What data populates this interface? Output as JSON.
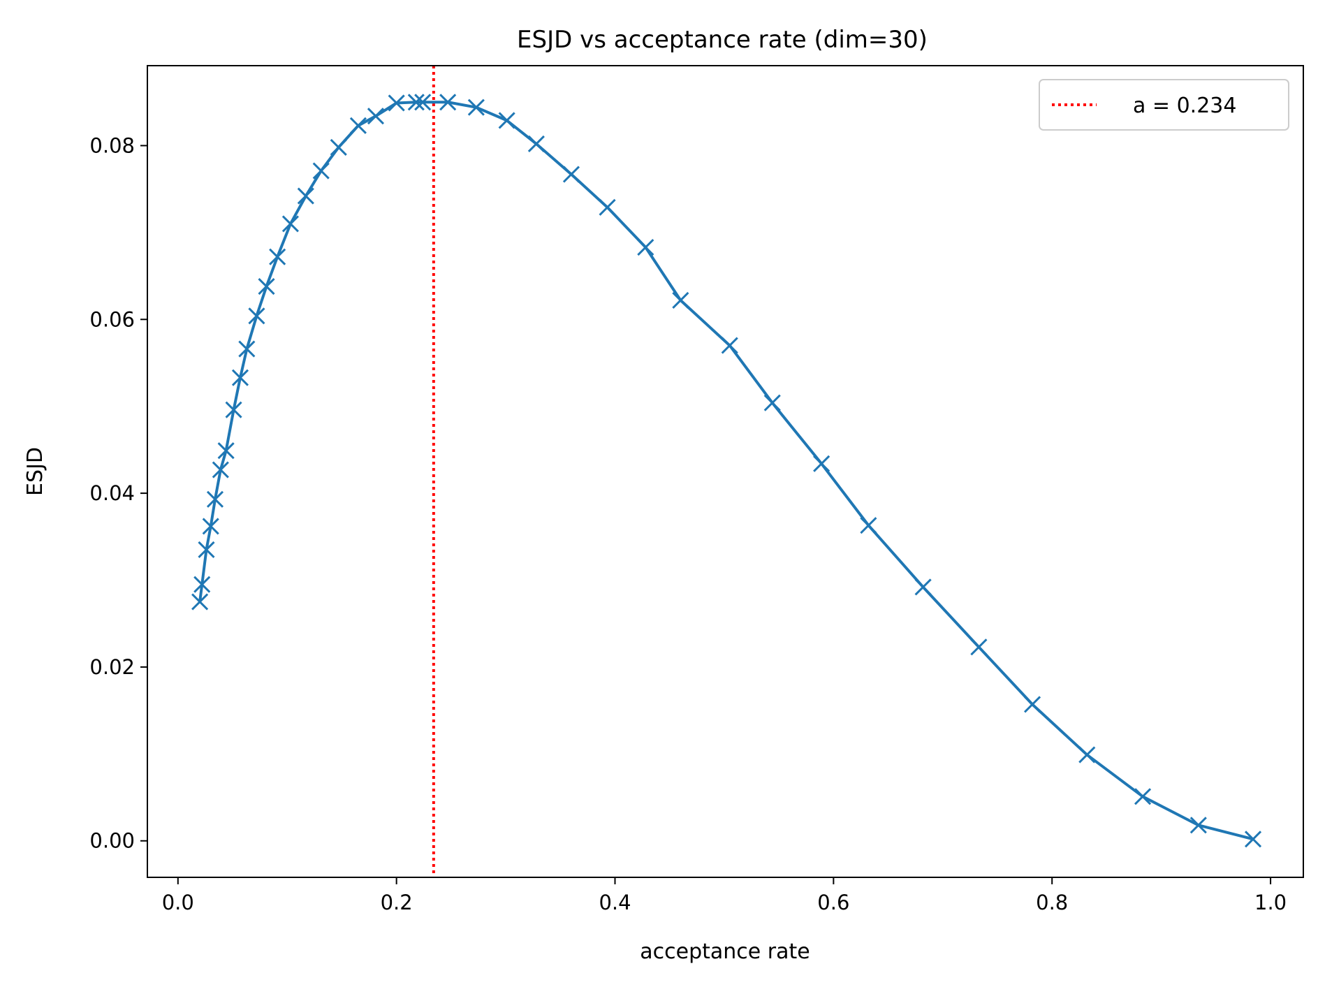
{
  "chart_data": {
    "type": "line",
    "title": "ESJD vs acceptance rate (dim=30)",
    "xlabel": "acceptance rate",
    "ylabel": "ESJD",
    "xlim": [
      -0.028,
      1.03
    ],
    "ylim": [
      -0.0042,
      0.0892
    ],
    "xticks": [
      0.0,
      0.2,
      0.4,
      0.6,
      0.8,
      1.0
    ],
    "xtick_labels": [
      "0.0",
      "0.2",
      "0.4",
      "0.6",
      "0.8",
      "1.0"
    ],
    "yticks": [
      0.0,
      0.02,
      0.04,
      0.06,
      0.08
    ],
    "ytick_labels": [
      "0.00",
      "0.02",
      "0.04",
      "0.06",
      "0.08"
    ],
    "grid": false,
    "legend": {
      "position": "top-right",
      "entries": [
        "a = 0.234"
      ]
    },
    "colors": {
      "series": "#1f77b4",
      "reference": "#ff0000"
    },
    "series": [
      {
        "name": "ESJD",
        "marker": "x",
        "x": [
          0.02,
          0.022,
          0.026,
          0.03,
          0.034,
          0.039,
          0.044,
          0.051,
          0.057,
          0.063,
          0.072,
          0.081,
          0.091,
          0.103,
          0.117,
          0.131,
          0.147,
          0.165,
          0.181,
          0.2,
          0.218,
          0.224,
          0.247,
          0.273,
          0.301,
          0.328,
          0.36,
          0.393,
          0.428,
          0.46,
          0.505,
          0.544,
          0.589,
          0.632,
          0.682,
          0.733,
          0.782,
          0.832,
          0.883,
          0.934,
          0.984
        ],
        "y": [
          0.0275,
          0.0295,
          0.0335,
          0.0362,
          0.0393,
          0.0427,
          0.0449,
          0.0496,
          0.0533,
          0.0566,
          0.0604,
          0.0638,
          0.0672,
          0.071,
          0.0742,
          0.0771,
          0.0798,
          0.0823,
          0.0834,
          0.0849,
          0.085,
          0.085,
          0.085,
          0.0844,
          0.0829,
          0.0802,
          0.0767,
          0.0729,
          0.0683,
          0.0622,
          0.057,
          0.0504,
          0.0434,
          0.0363,
          0.0292,
          0.0223,
          0.0157,
          0.0099,
          0.0051,
          0.0018,
          0.0002
        ]
      }
    ],
    "reference_line": {
      "orientation": "vertical",
      "x": 0.234,
      "style": "dotted",
      "label": "a = 0.234"
    }
  }
}
